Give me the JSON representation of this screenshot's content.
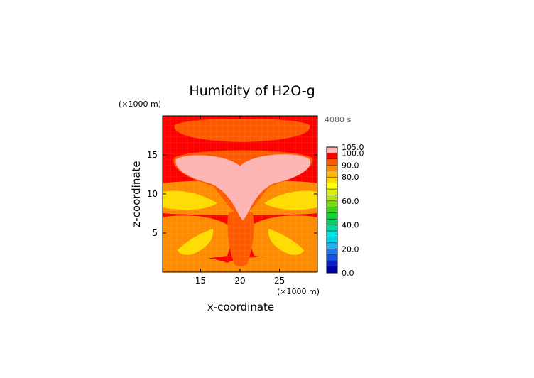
{
  "chart_data": {
    "type": "heatmap",
    "title": "Humidity of H2O-g",
    "time_label": "4080 s",
    "xlabel": "x-coordinate",
    "ylabel": "z-coordinate",
    "x_unit": "(×1000 m)",
    "y_unit": "(×1000 m)",
    "xlim": [
      10.2,
      29.8
    ],
    "ylim": [
      0,
      20
    ],
    "x_ticks": [
      15,
      20,
      25
    ],
    "y_ticks": [
      5,
      10,
      15
    ],
    "colorbar": {
      "levels": [
        0,
        5,
        10,
        15,
        20,
        25,
        30,
        35,
        40,
        45,
        50,
        55,
        60,
        65,
        70,
        75,
        80,
        85,
        90,
        95,
        100,
        105
      ],
      "labels": [
        "0.0",
        "20.0",
        "40.0",
        "60.0",
        "80.0",
        "90.0",
        "100.0",
        "105.0"
      ],
      "label_values": [
        0,
        20,
        40,
        60,
        80,
        90,
        100,
        105
      ],
      "colors": [
        "#0000a8",
        "#0a1ec8",
        "#1450e6",
        "#1e78f0",
        "#1eb4f0",
        "#00d2e6",
        "#00e6e6",
        "#00d8a0",
        "#00d264",
        "#10d232",
        "#3cd21e",
        "#78dc14",
        "#b4e614",
        "#dcf00a",
        "#ffff00",
        "#ffdc00",
        "#ffb400",
        "#ff8c00",
        "#ff5a00",
        "#ff0000",
        "#ffb4b4"
      ]
    },
    "field_levels": {
      "background": 95,
      "upper_band": 90,
      "anvil_top": 90,
      "anvil_core": 100,
      "mid_layer": 85,
      "dry_layer": 75,
      "lower_layer": 85,
      "lower_dry_pockets": 75,
      "surface_layer": 85,
      "updraft_column": 90
    }
  }
}
